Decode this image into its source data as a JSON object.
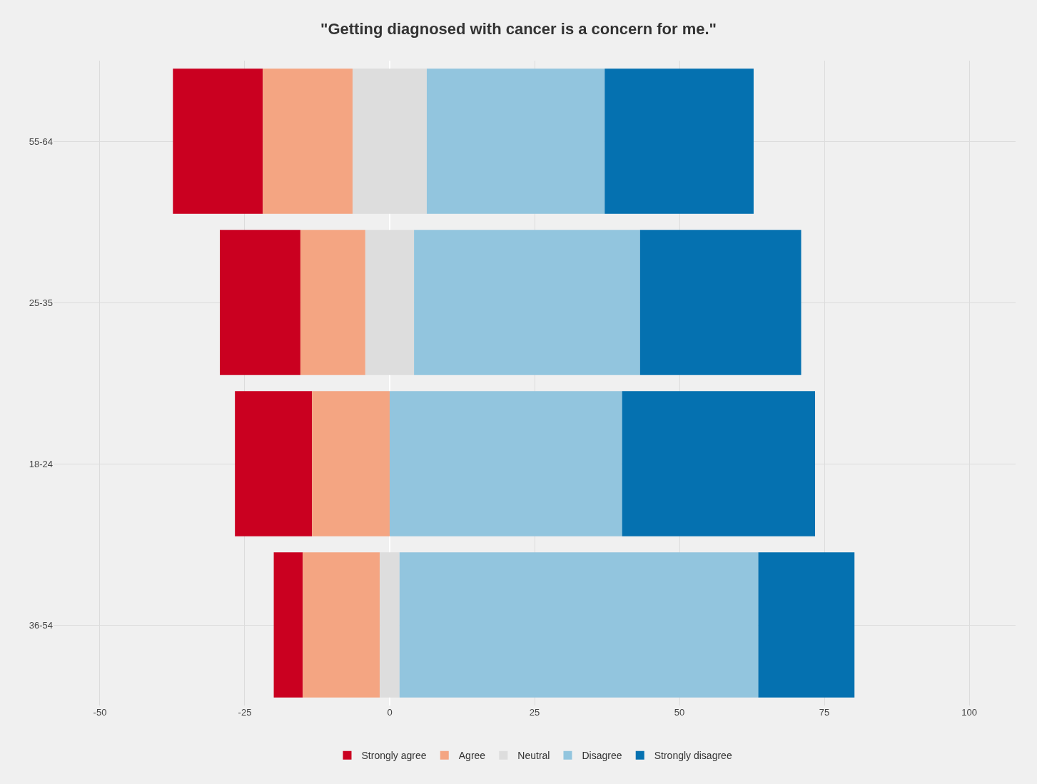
{
  "chart_data": {
    "type": "bar",
    "orientation": "horizontal",
    "title": "\"Getting diagnosed with cancer is a concern for me.\"",
    "categories": [
      "55-64",
      "25-35",
      "18-24",
      "36-54"
    ],
    "series": [
      {
        "name": "Strongly agree",
        "color": "#ca0020",
        "base": [
          -37.4,
          -29.3,
          -26.7,
          -20.0
        ],
        "values": [
          15.5,
          13.9,
          13.3,
          5.0
        ]
      },
      {
        "name": "Agree",
        "color": "#f4a582",
        "base": [
          -21.9,
          -15.4,
          -13.4,
          -15.0
        ],
        "values": [
          15.5,
          11.2,
          13.4,
          13.3
        ]
      },
      {
        "name": "Neutral",
        "color": "#dddddd",
        "base": [
          -6.4,
          -4.2,
          null,
          -1.7
        ],
        "values": [
          12.8,
          8.4,
          null,
          3.4
        ]
      },
      {
        "name": "Disagree",
        "color": "#92c5de",
        "base": [
          6.4,
          4.2,
          0,
          1.7
        ],
        "values": [
          30.7,
          39.0,
          40.1,
          61.9
        ]
      },
      {
        "name": "Strongly disagree",
        "color": "#0571b0",
        "base": [
          37.1,
          43.2,
          40.1,
          63.6
        ],
        "values": [
          25.7,
          27.8,
          33.3,
          16.6
        ]
      }
    ],
    "xlim": [
      -58,
      108
    ],
    "xticks": [
      -50,
      -25,
      0,
      25,
      50,
      75,
      100
    ],
    "grid": true,
    "legend": "bottom"
  }
}
